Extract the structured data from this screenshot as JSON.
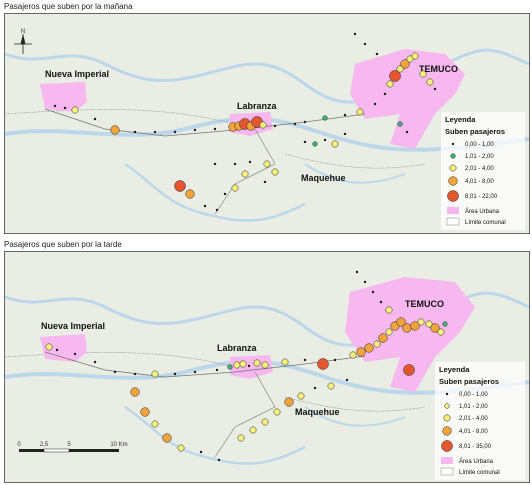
{
  "panels": [
    {
      "title": "Pasajeros que suben por la mañana",
      "places": {
        "nueva_imperial": "Nueva Imperial",
        "labranza": "Labranza",
        "temuco": "TEMUCO",
        "maquehue": "Maquehue"
      },
      "legend": {
        "title": "Leyenda",
        "subtitle": "Suben pasajeros",
        "classes": [
          "0,00 - 1,00",
          "1,01 - 2,00",
          "2,01 - 4,00",
          "4,01 - 8,00",
          "8,01 - 22,00"
        ],
        "urban": "Área Urbana",
        "limit": "Límite comunal"
      }
    },
    {
      "title": "Pasajeros que suben por la tarde",
      "places": {
        "nueva_imperial": "Nueva Imperial",
        "labranza": "Labranza",
        "temuco": "TEMUCO",
        "maquehue": "Maquehue"
      },
      "legend": {
        "title": "Leyenda",
        "subtitle": "Suben pasajeros",
        "classes": [
          "0,00 - 1,00",
          "1,01 - 2,00",
          "2,01 - 4,00",
          "4,01 - 8,00",
          "8,01 - 35,00"
        ],
        "urban": "Área Urbana",
        "limit": "Límite comunal"
      },
      "scale": {
        "ticks": [
          "0",
          "2,5",
          "5",
          "10 Km"
        ]
      }
    }
  ],
  "colors": {
    "class1": "#1a1a1a",
    "class2": "#3cb371",
    "class3": "#f5f07a",
    "class4": "#f2a33a",
    "class5": "#e4572e",
    "urban": "#f6b8ef",
    "river": "#bcd7ea",
    "background": "#e9ede4"
  },
  "north_arrow": "N"
}
